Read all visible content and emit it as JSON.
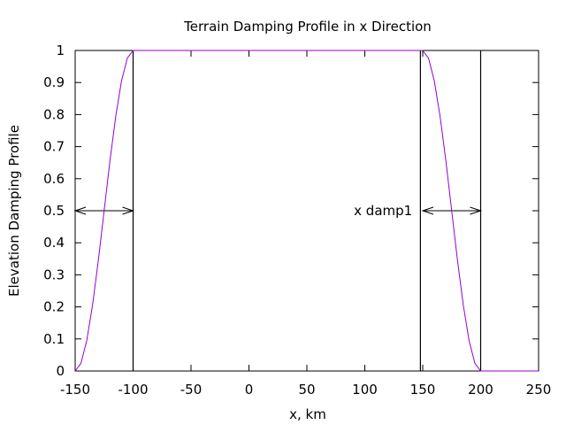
{
  "chart_data": {
    "type": "line",
    "title": "Terrain Damping Profile in x Direction",
    "xlabel": "x, km",
    "ylabel": "Elevation Damping Profile",
    "xlim": [
      -150,
      250
    ],
    "ylim": [
      0,
      1
    ],
    "x_ticks": [
      -150,
      -100,
      -50,
      0,
      50,
      100,
      150,
      200,
      250
    ],
    "y_ticks": [
      0,
      0.1,
      0.2,
      0.3,
      0.4,
      0.5,
      0.6,
      0.7,
      0.8,
      0.9,
      1
    ],
    "x_tick_labels": [
      "-150",
      "-100",
      "-50",
      "0",
      "50",
      "100",
      "150",
      "200",
      "250"
    ],
    "y_tick_labels": [
      "0",
      "0.1",
      "0.2",
      "0.3",
      "0.4",
      "0.5",
      "0.6",
      "0.7",
      "0.8",
      "0.9",
      "1"
    ],
    "grid": false,
    "series": [
      {
        "color": "#9400d3",
        "x": [
          -150,
          -145,
          -140,
          -135,
          -130,
          -125,
          -120,
          -115,
          -110,
          -105,
          -100,
          150,
          155,
          160,
          165,
          170,
          175,
          180,
          185,
          190,
          195,
          200,
          250
        ],
        "y": [
          0,
          0.024,
          0.095,
          0.206,
          0.345,
          0.5,
          0.655,
          0.794,
          0.905,
          0.976,
          1,
          1,
          0.976,
          0.905,
          0.794,
          0.655,
          0.5,
          0.345,
          0.206,
          0.095,
          0.024,
          0,
          0
        ]
      }
    ],
    "vertical_lines": [
      {
        "x": -100,
        "color": "#000000"
      },
      {
        "x": 148,
        "color": "#000000"
      },
      {
        "x": 200,
        "color": "#000000"
      }
    ],
    "arrows": [
      {
        "x_from": -150,
        "x_to": -100,
        "y": 0.5
      },
      {
        "x_from": 150,
        "x_to": 200,
        "y": 0.5
      }
    ],
    "annotations": [
      {
        "text": "x damp1",
        "x": 141,
        "y": 0.5
      }
    ]
  }
}
